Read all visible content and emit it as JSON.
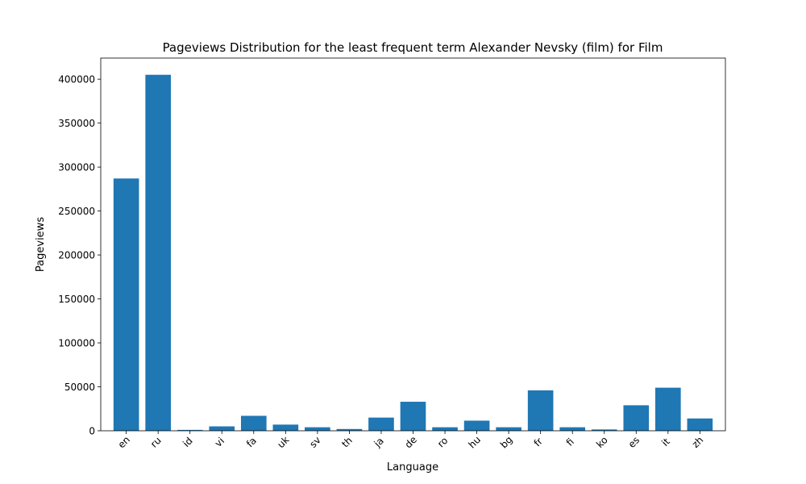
{
  "chart_data": {
    "type": "bar",
    "title": "Pageviews Distribution for the least frequent term Alexander Nevsky (film) for Film",
    "xlabel": "Language",
    "ylabel": "Pageviews",
    "categories": [
      "en",
      "ru",
      "id",
      "vi",
      "fa",
      "uk",
      "sv",
      "th",
      "ja",
      "de",
      "ro",
      "hu",
      "bg",
      "fr",
      "fi",
      "ko",
      "es",
      "it",
      "zh"
    ],
    "values": [
      287000,
      405000,
      1000,
      5000,
      17000,
      7000,
      4000,
      2000,
      15000,
      33000,
      4000,
      11500,
      4000,
      46000,
      4000,
      1500,
      29000,
      49000,
      14000
    ],
    "ylim": [
      0,
      424000
    ],
    "yticks": [
      0,
      50000,
      100000,
      150000,
      200000,
      250000,
      300000,
      350000,
      400000
    ],
    "bar_color": "#1f77b4",
    "grid": false,
    "xtick_rotation_deg": 45
  }
}
